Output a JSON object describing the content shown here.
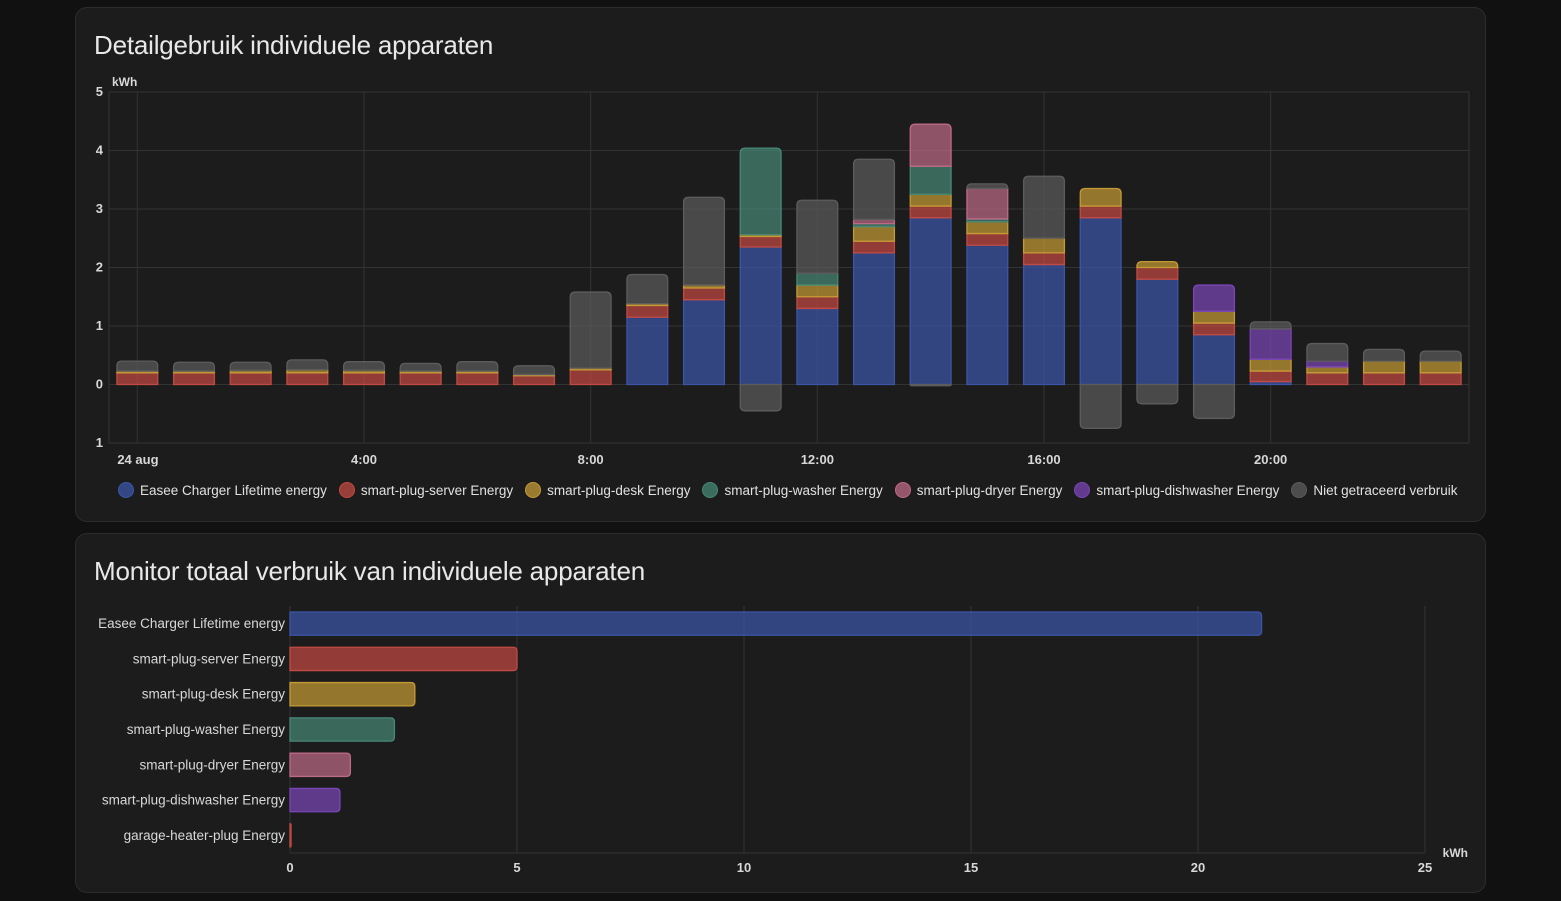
{
  "cards": {
    "top": {
      "title": "Detailgebruik individuele apparaten"
    },
    "bottom": {
      "title": "Monitor totaal verbruik van individuele apparaten"
    }
  },
  "colors": {
    "easee": "#3b56a8",
    "server": "#c24a42",
    "desk": "#c49a35",
    "washer": "#468876",
    "dryer": "#bd6a87",
    "dishwasher": "#7a45b5",
    "untracked": "#5c5c5c",
    "garage": "#c24a42"
  },
  "chart_data": [
    {
      "type": "bar",
      "stacked": true,
      "title": "Detailgebruik individuele apparaten",
      "ylabel": "kWh",
      "ylim": [
        -1,
        5
      ],
      "y_ticks": [
        5,
        4,
        3,
        2,
        1,
        0,
        -1
      ],
      "y_tick_labels": [
        "5",
        "4",
        "3",
        "2",
        "1",
        "0",
        "1"
      ],
      "x_tick_labels": [
        "24 aug",
        "4:00",
        "8:00",
        "12:00",
        "16:00",
        "20:00"
      ],
      "categories": [
        "0:00",
        "1:00",
        "2:00",
        "3:00",
        "4:00",
        "5:00",
        "6:00",
        "7:00",
        "8:00",
        "9:00",
        "10:00",
        "11:00",
        "12:00",
        "13:00",
        "14:00",
        "15:00",
        "16:00",
        "17:00",
        "18:00",
        "19:00",
        "20:00",
        "21:00",
        "22:00",
        "23:00"
      ],
      "legend_position": "bottom",
      "grid": true,
      "series": [
        {
          "name": "Easee Charger Lifetime energy",
          "key": "easee",
          "values": [
            0,
            0,
            0,
            0,
            0,
            0,
            0,
            0,
            0,
            1.15,
            1.45,
            2.35,
            1.3,
            2.25,
            2.85,
            2.38,
            2.05,
            2.85,
            1.8,
            0.85,
            0.05,
            0,
            0,
            0
          ]
        },
        {
          "name": "smart-plug-server Energy",
          "key": "server",
          "values": [
            0.2,
            0.2,
            0.2,
            0.2,
            0.2,
            0.2,
            0.2,
            0.15,
            0.25,
            0.2,
            0.2,
            0.18,
            0.2,
            0.2,
            0.2,
            0.2,
            0.2,
            0.2,
            0.2,
            0.2,
            0.18,
            0.2,
            0.2,
            0.2
          ]
        },
        {
          "name": "smart-plug-desk Energy",
          "key": "desk",
          "values": [
            0.03,
            0.03,
            0.04,
            0.05,
            0.04,
            0.03,
            0.03,
            0.02,
            0.03,
            0.03,
            0.05,
            0.03,
            0.2,
            0.25,
            0.2,
            0.2,
            0.25,
            0.3,
            0.1,
            0.2,
            0.2,
            0.1,
            0.2,
            0.2
          ]
        },
        {
          "name": "smart-plug-washer Energy",
          "key": "washer",
          "values": [
            0,
            0,
            0,
            0,
            0,
            0,
            0,
            0,
            0,
            0,
            0,
            1.48,
            0.2,
            0.05,
            0.48,
            0.05,
            0,
            0,
            0,
            0,
            0,
            0,
            0,
            0
          ]
        },
        {
          "name": "smart-plug-dryer Energy",
          "key": "dryer",
          "values": [
            0,
            0,
            0,
            0,
            0,
            0,
            0,
            0,
            0,
            0,
            0,
            0,
            0,
            0.07,
            0.72,
            0.52,
            0,
            0,
            0,
            0,
            0,
            0,
            0,
            0
          ]
        },
        {
          "name": "smart-plug-dishwasher Energy",
          "key": "dishwasher",
          "values": [
            0,
            0,
            0,
            0,
            0,
            0,
            0,
            0,
            0,
            0,
            0,
            0,
            0,
            0,
            0,
            0,
            0,
            0,
            0,
            0.45,
            0.52,
            0.1,
            0,
            0
          ]
        },
        {
          "name": "Niet getraceerd verbruik",
          "key": "untracked",
          "values": [
            0.17,
            0.15,
            0.14,
            0.17,
            0.15,
            0.13,
            0.16,
            0.15,
            1.3,
            0.5,
            1.5,
            -0.45,
            1.25,
            1.03,
            -0.02,
            0.08,
            1.06,
            -0.75,
            -0.33,
            -0.58,
            0.12,
            0.3,
            0.2,
            0.17
          ]
        }
      ]
    },
    {
      "type": "bar",
      "orientation": "horizontal",
      "title": "Monitor totaal verbruik van individuele apparaten",
      "xlabel": "kWh",
      "xlim": [
        0,
        25
      ],
      "x_ticks": [
        0,
        5,
        10,
        15,
        20,
        25
      ],
      "x_tick_labels": [
        "0",
        "5",
        "10",
        "15",
        "20",
        "25"
      ],
      "grid": true,
      "categories": [
        "Easee Charger Lifetime energy",
        "smart-plug-server Energy",
        "smart-plug-desk Energy",
        "smart-plug-washer Energy",
        "smart-plug-dryer Energy",
        "smart-plug-dishwasher Energy",
        "garage-heater-plug Energy"
      ],
      "color_keys": [
        "easee",
        "server",
        "desk",
        "washer",
        "dryer",
        "dishwasher",
        "garage"
      ],
      "values": [
        21.4,
        5.0,
        2.75,
        2.3,
        1.33,
        1.1,
        0.02
      ]
    }
  ]
}
